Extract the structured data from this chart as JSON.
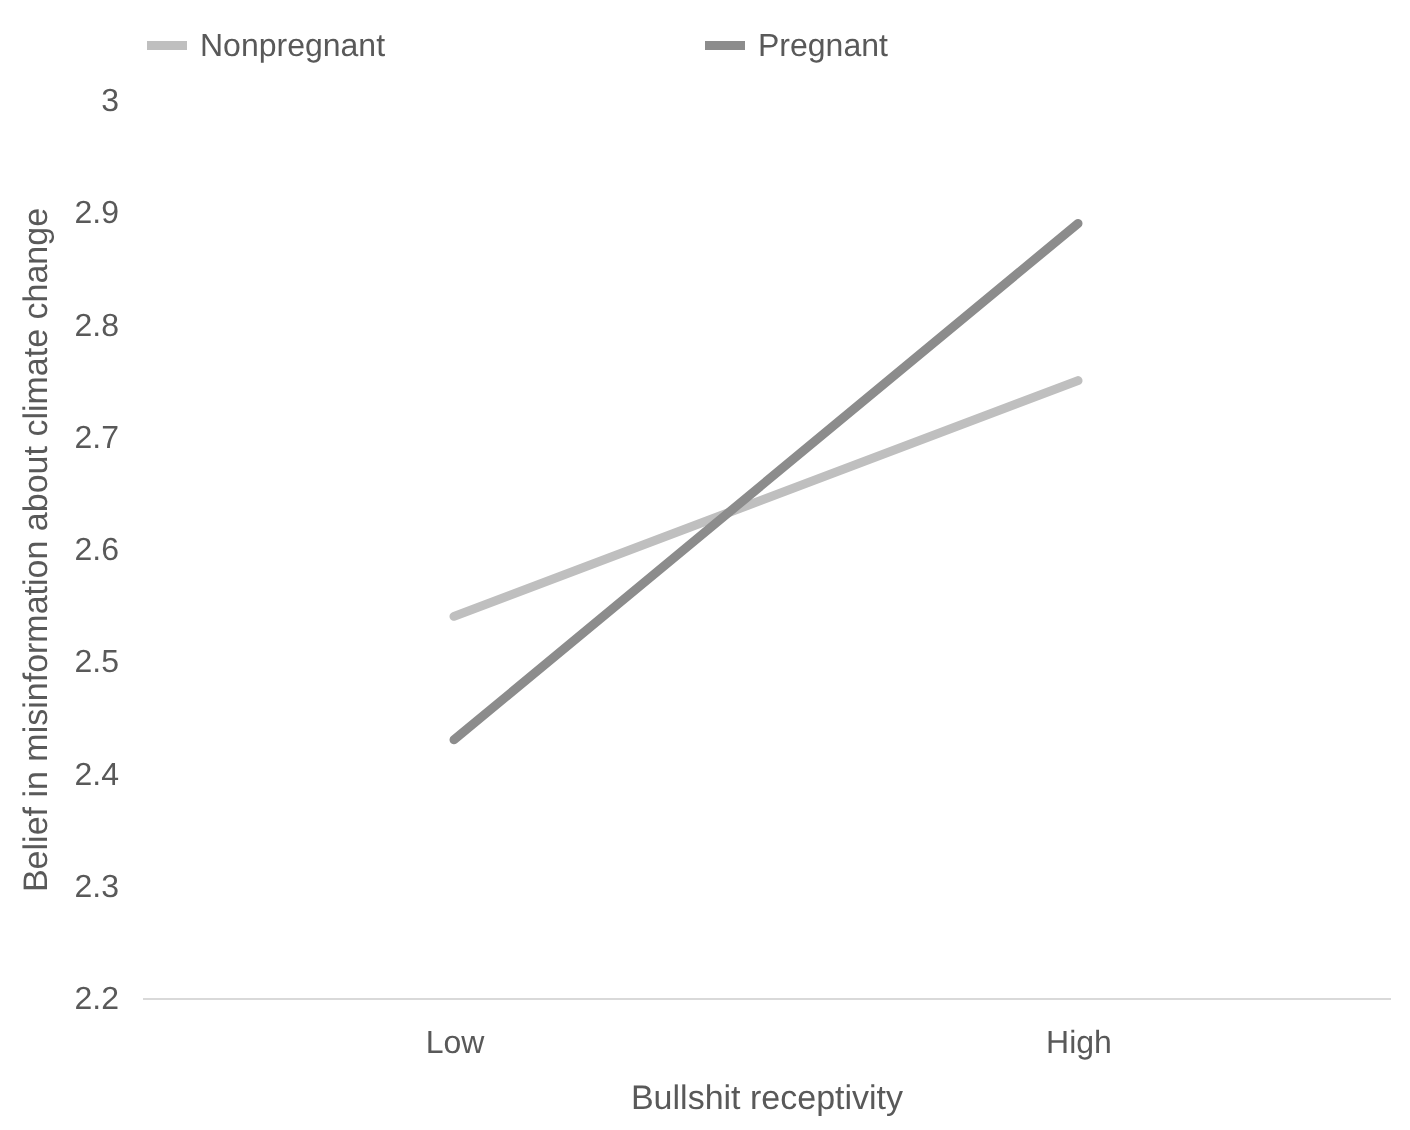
{
  "chart_data": {
    "type": "line",
    "xlabel": "Bullshit receptivity",
    "ylabel": "Belief in misinformation about climate change",
    "categories": [
      "Low",
      "High"
    ],
    "series": [
      {
        "name": "Nonpregnant",
        "color": "#bfbfbf",
        "values": [
          2.54,
          2.75
        ]
      },
      {
        "name": "Pregnant",
        "color": "#8c8c8c",
        "values": [
          2.43,
          2.89
        ]
      }
    ],
    "ylim": [
      2.2,
      3
    ],
    "yticks": [
      {
        "value": 2.2,
        "label": "2.2"
      },
      {
        "value": 2.3,
        "label": "2.3"
      },
      {
        "value": 2.4,
        "label": "2.4"
      },
      {
        "value": 2.5,
        "label": "2.5"
      },
      {
        "value": 2.6,
        "label": "2.6"
      },
      {
        "value": 2.7,
        "label": "2.7"
      },
      {
        "value": 2.8,
        "label": "2.8"
      },
      {
        "value": 2.9,
        "label": "2.9"
      },
      {
        "value": 3,
        "label": "3"
      }
    ],
    "grid": false,
    "legend": "top",
    "marker": "none",
    "line_style": "solid"
  }
}
